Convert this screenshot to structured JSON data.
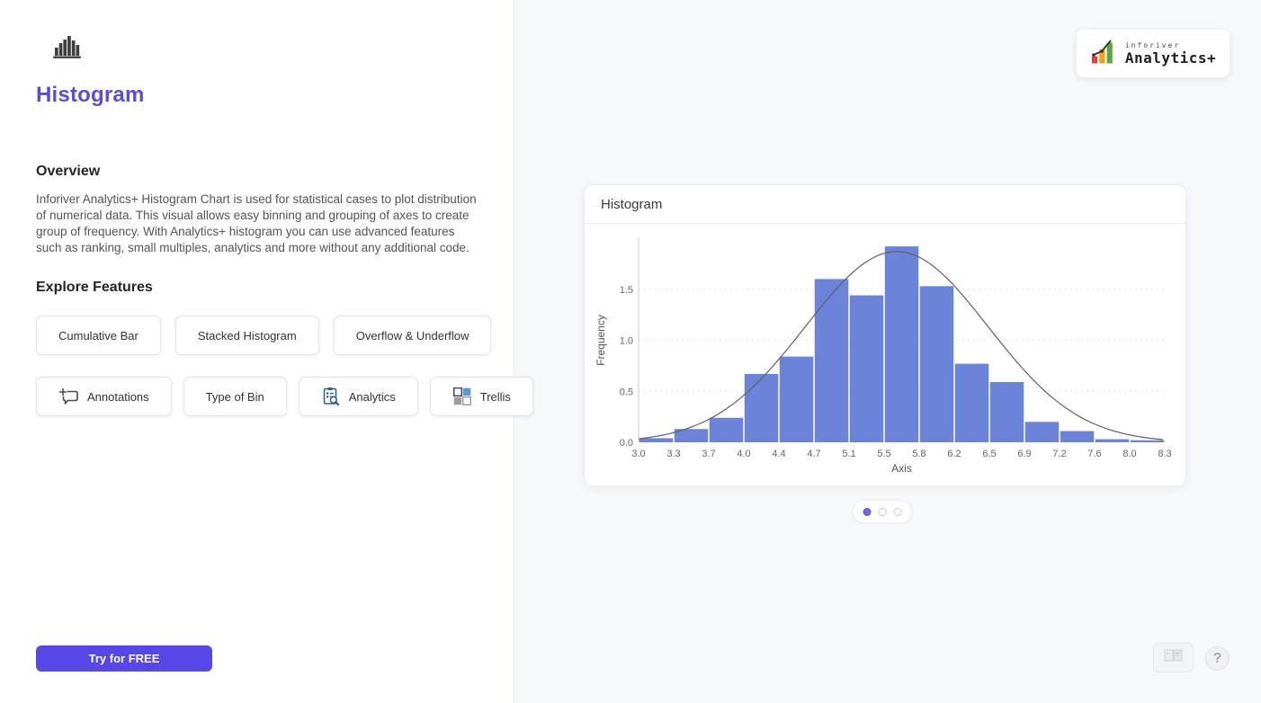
{
  "sidebar": {
    "title": "Histogram",
    "overview_heading": "Overview",
    "overview_text": "Inforiver Analytics+ Histogram Chart is used for statistical cases to plot distribution of numerical data. This visual allows easy binning and grouping of axes to create group of frequency. With Analytics+ histogram you can use advanced features such as ranking, small multiples, analytics and more without any additional code.",
    "features_heading": "Explore Features",
    "features": [
      {
        "label": "Cumulative Bar"
      },
      {
        "label": "Stacked Histogram"
      },
      {
        "label": "Overflow & Underflow"
      },
      {
        "label": "Annotations",
        "icon": "annotations-icon"
      },
      {
        "label": "Type of Bin"
      },
      {
        "label": "Analytics",
        "icon": "analytics-icon"
      },
      {
        "label": "Trellis",
        "icon": "trellis-icon"
      }
    ],
    "cta_label": "Try for FREE"
  },
  "brand": {
    "name_small": "inforiver",
    "name_main": "Analytics+"
  },
  "preview": {
    "card_title": "Histogram",
    "carousel": {
      "dot_count": 3,
      "active_index": 0
    },
    "help_glyph": "?"
  },
  "chart_data": {
    "type": "bar",
    "subtype": "histogram",
    "title": "Histogram",
    "xlabel": "Axis",
    "ylabel": "Frequency",
    "x_ticks": [
      "3.0",
      "3.3",
      "3.7",
      "4.0",
      "4.4",
      "4.7",
      "5.1",
      "5.5",
      "5.8",
      "6.2",
      "6.5",
      "6.9",
      "7.2",
      "7.6",
      "8.0",
      "8.3"
    ],
    "y_ticks": [
      "0.0",
      "0.5",
      "1.0",
      "1.5"
    ],
    "ylim": [
      0,
      2.0
    ],
    "grid": "dotted horizontal lines at 0.5, 1.0, 1.5",
    "legend": "none",
    "frequencies": [
      0.04,
      0.13,
      0.24,
      0.67,
      0.84,
      1.6,
      1.44,
      1.92,
      1.53,
      0.77,
      0.59,
      0.2,
      0.11,
      0.03,
      0.02
    ],
    "curve": {
      "type": "normal",
      "mean": 5.6,
      "sd": 0.92,
      "peak": 1.87,
      "color": "#616161"
    },
    "bar_color": "#6c83da"
  },
  "colors": {
    "accent_purple": "#5a4bdf",
    "cta_background": "#5746e8",
    "bar_blue": "#6c83da",
    "panel_background": "#f7f8fb",
    "logo_red": "#e2403c",
    "logo_orange": "#f0a30a",
    "logo_green": "#5aa63f"
  }
}
